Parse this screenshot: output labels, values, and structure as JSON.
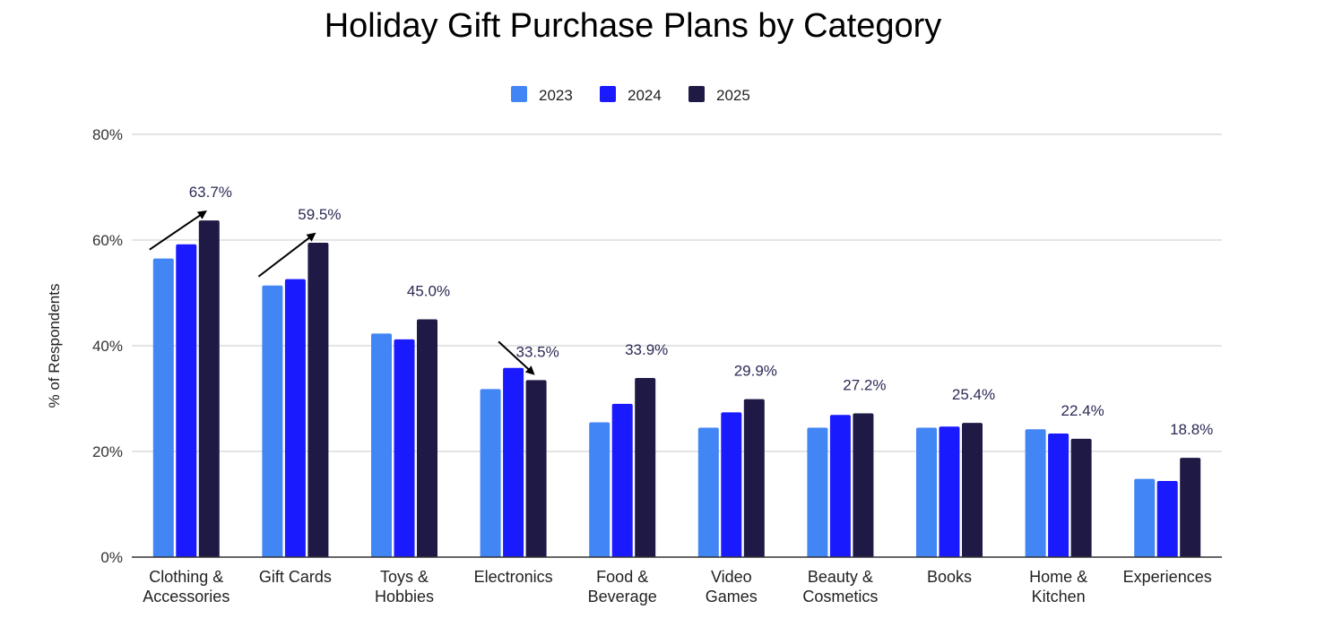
{
  "chart_data": {
    "type": "bar",
    "title": "Holiday Gift Purchase Plans by Category",
    "xlabel": "",
    "ylabel": "% of Respondents",
    "ylim": [
      0,
      80
    ],
    "yticks": [
      "0%",
      "20%",
      "40%",
      "60%",
      "80%"
    ],
    "ytick_values": [
      0,
      20,
      40,
      60,
      80
    ],
    "grid": true,
    "legend_position": "top",
    "categories": [
      [
        "Clothing &",
        "Accessories"
      ],
      [
        "Gift Cards"
      ],
      [
        "Toys &",
        "Hobbies"
      ],
      [
        "Electronics"
      ],
      [
        "Food &",
        "Beverage"
      ],
      [
        "Video",
        "Games"
      ],
      [
        "Beauty &",
        "Cosmetics"
      ],
      [
        "Books"
      ],
      [
        "Home &",
        "Kitchen"
      ],
      [
        "Experiences"
      ]
    ],
    "series": [
      {
        "name": "2023",
        "color": "#4285f4",
        "values": [
          56.5,
          51.4,
          42.3,
          31.8,
          25.5,
          24.5,
          24.5,
          24.5,
          24.2,
          14.8
        ]
      },
      {
        "name": "2024",
        "color": "#1a1aff",
        "values": [
          59.2,
          52.6,
          41.2,
          35.8,
          29.0,
          27.4,
          26.9,
          24.7,
          23.4,
          14.4
        ]
      },
      {
        "name": "2025",
        "color": "#1f1a45",
        "values": [
          63.7,
          59.5,
          45.0,
          33.5,
          33.9,
          29.9,
          27.2,
          25.4,
          22.4,
          18.8
        ]
      }
    ],
    "data_labels": [
      "63.7%",
      "59.5%",
      "45.0%",
      "33.5%",
      "33.9%",
      "29.9%",
      "27.2%",
      "25.4%",
      "22.4%",
      "18.8%"
    ],
    "annotations": [
      {
        "category_index": 0,
        "direction": "up"
      },
      {
        "category_index": 1,
        "direction": "up"
      },
      {
        "category_index": 3,
        "direction": "down"
      }
    ]
  }
}
